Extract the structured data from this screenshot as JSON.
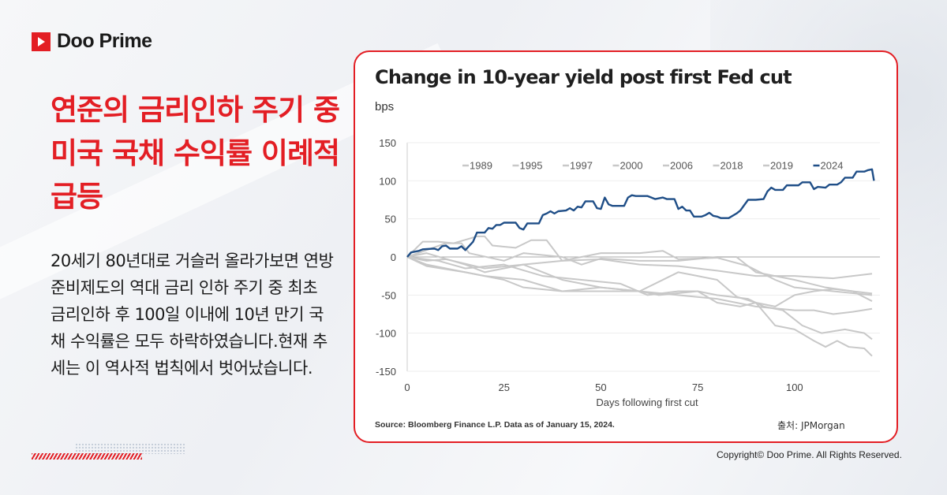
{
  "brand": {
    "name": "Doo Prime",
    "accent": "#e31e24"
  },
  "headline": "연준의 금리인하 주기 중 미국 국채 수익률 이례적 급등",
  "body": "20세기 80년대로 거슬러 올라가보면 연방준비제도의 역대 금리 인하 주기 중 최초 금리인하 후 100일 이내에 10년 만기 국채 수익률은 모두 하락하였습니다.현재 추세는 이 역사적 법칙에서 벗어났습니다.",
  "copyright": "Copyright© Doo Prime. All Rights Reserved.",
  "credit": "출처:  JPMorgan",
  "chart_data": {
    "type": "line",
    "title": "Change in 10-year yield post first Fed cut",
    "ylabel": "bps",
    "xlabel": "Days following first cut",
    "source": "Source: Bloomberg Finance L.P. Data as of January 15, 2024.",
    "xlim": [
      0,
      120
    ],
    "ylim": [
      -150,
      150
    ],
    "xticks": [
      0,
      25,
      50,
      75,
      100
    ],
    "yticks": [
      150,
      100,
      50,
      0,
      -50,
      -100,
      -150
    ],
    "grid": true,
    "legend_position": "top",
    "series": [
      {
        "name": "1989",
        "color": "#c8c8c8",
        "points": [
          [
            0,
            0
          ],
          [
            5,
            -5
          ],
          [
            10,
            -3
          ],
          [
            20,
            -15
          ],
          [
            30,
            -10
          ],
          [
            40,
            -5
          ],
          [
            50,
            -3
          ],
          [
            60,
            -10
          ],
          [
            70,
            -12
          ],
          [
            80,
            -18
          ],
          [
            90,
            -25
          ],
          [
            100,
            -25
          ],
          [
            110,
            -28
          ],
          [
            115,
            -25
          ],
          [
            120,
            -22
          ]
        ]
      },
      {
        "name": "1995",
        "color": "#c8c8c8",
        "points": [
          [
            0,
            0
          ],
          [
            4,
            20
          ],
          [
            8,
            20
          ],
          [
            12,
            18
          ],
          [
            18,
            27
          ],
          [
            20,
            27
          ],
          [
            22,
            15
          ],
          [
            28,
            12
          ],
          [
            32,
            22
          ],
          [
            36,
            22
          ],
          [
            40,
            -5
          ],
          [
            50,
            5
          ],
          [
            60,
            5
          ],
          [
            66,
            8
          ],
          [
            70,
            -3
          ],
          [
            80,
            -1
          ],
          [
            88,
            -12
          ],
          [
            95,
            -30
          ],
          [
            100,
            -40
          ],
          [
            110,
            -45
          ],
          [
            120,
            -50
          ]
        ]
      },
      {
        "name": "1997",
        "color": "#c8c8c8",
        "points": [
          [
            0,
            0
          ],
          [
            10,
            18
          ],
          [
            14,
            18
          ],
          [
            16,
            5
          ],
          [
            25,
            -5
          ],
          [
            30,
            5
          ],
          [
            40,
            0
          ],
          [
            45,
            -10
          ],
          [
            50,
            -2
          ],
          [
            60,
            -5
          ],
          [
            70,
            -5
          ],
          [
            80,
            0
          ],
          [
            85,
            0
          ],
          [
            90,
            -20
          ],
          [
            100,
            -30
          ],
          [
            108,
            -40
          ],
          [
            115,
            -45
          ],
          [
            120,
            -58
          ]
        ]
      },
      {
        "name": "2000",
        "color": "#c8c8c8",
        "points": [
          [
            0,
            0
          ],
          [
            5,
            -10
          ],
          [
            15,
            -20
          ],
          [
            20,
            -25
          ],
          [
            30,
            -30
          ],
          [
            40,
            -45
          ],
          [
            50,
            -45
          ],
          [
            60,
            -45
          ],
          [
            70,
            -50
          ],
          [
            80,
            -55
          ],
          [
            90,
            -65
          ],
          [
            100,
            -70
          ],
          [
            105,
            -70
          ],
          [
            110,
            -75
          ],
          [
            115,
            -72
          ],
          [
            120,
            -68
          ]
        ]
      },
      {
        "name": "2006",
        "color": "#c8c8c8",
        "points": [
          [
            0,
            0
          ],
          [
            8,
            -5
          ],
          [
            15,
            -15
          ],
          [
            25,
            -10
          ],
          [
            35,
            -25
          ],
          [
            45,
            -30
          ],
          [
            55,
            -35
          ],
          [
            62,
            -50
          ],
          [
            70,
            -45
          ],
          [
            75,
            -45
          ],
          [
            80,
            -50
          ],
          [
            88,
            -55
          ],
          [
            92,
            -65
          ],
          [
            97,
            -70
          ],
          [
            102,
            -90
          ],
          [
            107,
            -100
          ],
          [
            113,
            -95
          ],
          [
            118,
            -100
          ],
          [
            120,
            -108
          ]
        ]
      },
      {
        "name": "2018",
        "color": "#c8c8c8",
        "points": [
          [
            0,
            0
          ],
          [
            5,
            -12
          ],
          [
            15,
            -20
          ],
          [
            25,
            -30
          ],
          [
            30,
            -40
          ],
          [
            40,
            -45
          ],
          [
            50,
            -40
          ],
          [
            60,
            -45
          ],
          [
            65,
            -50
          ],
          [
            75,
            -45
          ],
          [
            80,
            -60
          ],
          [
            86,
            -65
          ],
          [
            90,
            -60
          ],
          [
            95,
            -90
          ],
          [
            100,
            -95
          ],
          [
            105,
            -110
          ],
          [
            108,
            -118
          ],
          [
            111,
            -110
          ],
          [
            114,
            -118
          ],
          [
            118,
            -120
          ],
          [
            120,
            -130
          ]
        ]
      },
      {
        "name": "2019",
        "color": "#c8c8c8",
        "points": [
          [
            0,
            0
          ],
          [
            5,
            5
          ],
          [
            15,
            -10
          ],
          [
            20,
            -20
          ],
          [
            30,
            -10
          ],
          [
            35,
            -20
          ],
          [
            40,
            -30
          ],
          [
            50,
            -40
          ],
          [
            60,
            -45
          ],
          [
            70,
            -20
          ],
          [
            75,
            -25
          ],
          [
            80,
            -30
          ],
          [
            85,
            -52
          ],
          [
            90,
            -60
          ],
          [
            95,
            -65
          ],
          [
            100,
            -50
          ],
          [
            105,
            -45
          ],
          [
            110,
            -42
          ],
          [
            115,
            -45
          ],
          [
            120,
            -48
          ]
        ]
      },
      {
        "name": "2024",
        "color": "#1f4e87",
        "points": [
          [
            0,
            0
          ],
          [
            1,
            6
          ],
          [
            3,
            8
          ],
          [
            4,
            10
          ],
          [
            7,
            11
          ],
          [
            8,
            9
          ],
          [
            9,
            14
          ],
          [
            10,
            15
          ],
          [
            11,
            11
          ],
          [
            13,
            11
          ],
          [
            14,
            14
          ],
          [
            15,
            9
          ],
          [
            17,
            20
          ],
          [
            18,
            32
          ],
          [
            20,
            32
          ],
          [
            21,
            38
          ],
          [
            22,
            37
          ],
          [
            23,
            42
          ],
          [
            24,
            42
          ],
          [
            25,
            45
          ],
          [
            28,
            45
          ],
          [
            29,
            38
          ],
          [
            30,
            36
          ],
          [
            31,
            44
          ],
          [
            34,
            44
          ],
          [
            35,
            55
          ],
          [
            36,
            57
          ],
          [
            37,
            60
          ],
          [
            38,
            57
          ],
          [
            39,
            60
          ],
          [
            41,
            61
          ],
          [
            42,
            64
          ],
          [
            43,
            61
          ],
          [
            44,
            66
          ],
          [
            45,
            65
          ],
          [
            46,
            73
          ],
          [
            48,
            73
          ],
          [
            49,
            64
          ],
          [
            50,
            63
          ],
          [
            51,
            78
          ],
          [
            52,
            69
          ],
          [
            53,
            67
          ],
          [
            56,
            67
          ],
          [
            57,
            78
          ],
          [
            58,
            81
          ],
          [
            59,
            80
          ],
          [
            62,
            80
          ],
          [
            64,
            76
          ],
          [
            66,
            78
          ],
          [
            67,
            76
          ],
          [
            69,
            76
          ],
          [
            70,
            63
          ],
          [
            71,
            66
          ],
          [
            72,
            61
          ],
          [
            73,
            61
          ],
          [
            74,
            53
          ],
          [
            76,
            53
          ],
          [
            77,
            55
          ],
          [
            78,
            58
          ],
          [
            79,
            54
          ],
          [
            80,
            53
          ],
          [
            81,
            51
          ],
          [
            83,
            51
          ],
          [
            85,
            57
          ],
          [
            86,
            61
          ],
          [
            87,
            68
          ],
          [
            88,
            75
          ],
          [
            90,
            75
          ],
          [
            92,
            76
          ],
          [
            93,
            86
          ],
          [
            94,
            91
          ],
          [
            95,
            88
          ],
          [
            97,
            88
          ],
          [
            98,
            94
          ],
          [
            101,
            94
          ],
          [
            102,
            98
          ],
          [
            104,
            98
          ],
          [
            105,
            89
          ],
          [
            106,
            92
          ],
          [
            108,
            91
          ],
          [
            109,
            95
          ],
          [
            111,
            95
          ],
          [
            112,
            98
          ],
          [
            113,
            104
          ],
          [
            115,
            104
          ],
          [
            116,
            112
          ],
          [
            118,
            112
          ],
          [
            119,
            114
          ],
          [
            120,
            115
          ],
          [
            120.5,
            100
          ]
        ]
      }
    ]
  }
}
